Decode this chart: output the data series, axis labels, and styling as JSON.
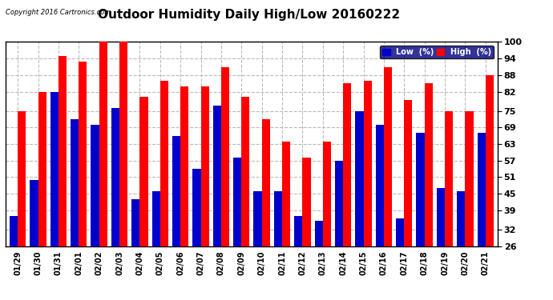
{
  "title": "Outdoor Humidity Daily High/Low 20160222",
  "copyright": "Copyright 2016 Cartronics.com",
  "dates": [
    "01/29",
    "01/30",
    "01/31",
    "02/01",
    "02/02",
    "02/03",
    "02/04",
    "02/05",
    "02/06",
    "02/07",
    "02/08",
    "02/09",
    "02/10",
    "02/11",
    "02/12",
    "02/13",
    "02/14",
    "02/15",
    "02/16",
    "02/17",
    "02/18",
    "02/19",
    "02/20",
    "02/21"
  ],
  "high": [
    75,
    82,
    95,
    93,
    100,
    100,
    80,
    86,
    84,
    84,
    91,
    80,
    72,
    64,
    58,
    64,
    85,
    86,
    91,
    79,
    85,
    75,
    75,
    88
  ],
  "low": [
    37,
    50,
    82,
    72,
    70,
    76,
    43,
    46,
    66,
    54,
    77,
    58,
    46,
    46,
    37,
    35,
    57,
    75,
    70,
    36,
    67,
    47,
    46,
    67
  ],
  "high_color": "#ff0000",
  "low_color": "#0000cc",
  "bg_color": "#ffffff",
  "ylim": [
    26,
    100
  ],
  "yticks": [
    26,
    32,
    39,
    45,
    51,
    57,
    63,
    69,
    75,
    82,
    88,
    94,
    100
  ],
  "grid_color": "#bbbbbb",
  "title_fontsize": 11,
  "legend_low_label": "Low  (%)",
  "legend_high_label": "High  (%)"
}
